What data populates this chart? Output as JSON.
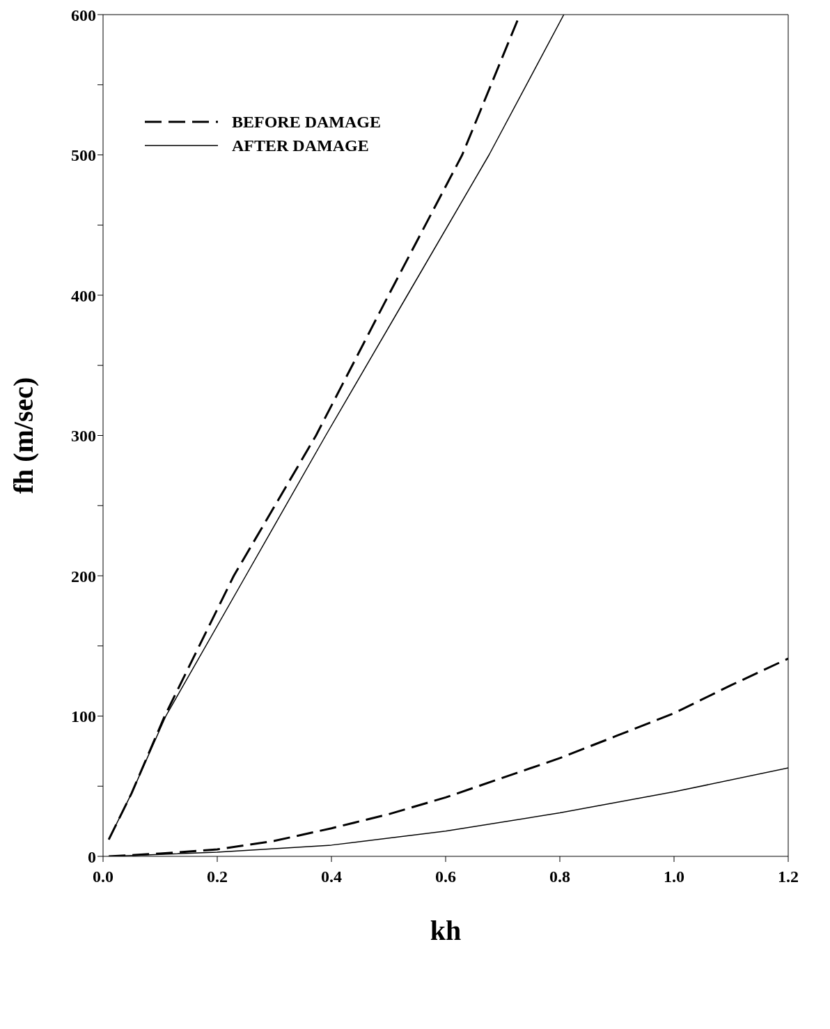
{
  "chart_data": {
    "type": "line",
    "xlabel": "kh",
    "ylabel": "fh (m/sec)",
    "xlim": [
      0,
      1.2
    ],
    "ylim": [
      0,
      600
    ],
    "xticks": [
      {
        "value": 0,
        "label": "0.0"
      },
      {
        "value": 0.2,
        "label": "0.2"
      },
      {
        "value": 0.4,
        "label": "0.4"
      },
      {
        "value": 0.6,
        "label": "0.6"
      },
      {
        "value": 0.8,
        "label": "0.8"
      },
      {
        "value": 1,
        "label": "1.0"
      },
      {
        "value": 1.2,
        "label": "1.2"
      }
    ],
    "yticks": [
      0,
      {
        "value": 50,
        "label": null
      },
      100,
      {
        "value": 150,
        "label": null
      },
      200,
      {
        "value": 250,
        "label": null
      },
      300,
      {
        "value": 350,
        "label": null
      },
      400,
      {
        "value": 450,
        "label": null
      },
      500,
      {
        "value": 550,
        "label": null
      },
      600
    ],
    "legend": "top left",
    "marker": "none",
    "series": [
      {
        "name": "BEFORE DAMAGE",
        "color": "#000000",
        "line_style": "dashed",
        "x": [
          0.01,
          0.05,
          0.108,
          0.229,
          0.373,
          0.5,
          0.629,
          0.73
        ],
        "values": [
          12,
          45,
          100,
          200,
          300,
          400,
          500,
          600
        ]
      },
      {
        "name": "AFTER DAMAGE",
        "color": "#000000",
        "line_style": "solid",
        "x": [
          0.01,
          0.05,
          0.11,
          0.25,
          0.39,
          0.533,
          0.676,
          0.807
        ],
        "values": [
          12,
          45,
          100,
          200,
          300,
          400,
          500,
          600
        ]
      },
      {
        "color": "#000000",
        "line_style": "dashed",
        "x": [
          0.01,
          0.1,
          0.2,
          0.3,
          0.4,
          0.5,
          0.6,
          0.7,
          0.8,
          0.9,
          1.0,
          1.1,
          1.2
        ],
        "values": [
          0,
          2,
          5,
          11,
          20,
          30,
          42,
          56,
          70,
          86,
          102,
          122,
          141
        ]
      },
      {
        "color": "#000000",
        "line_style": "solid",
        "x": [
          0.01,
          0.2,
          0.4,
          0.6,
          0.8,
          1.0,
          1.2
        ],
        "values": [
          0,
          3,
          8,
          18,
          31,
          46,
          63
        ]
      }
    ]
  }
}
